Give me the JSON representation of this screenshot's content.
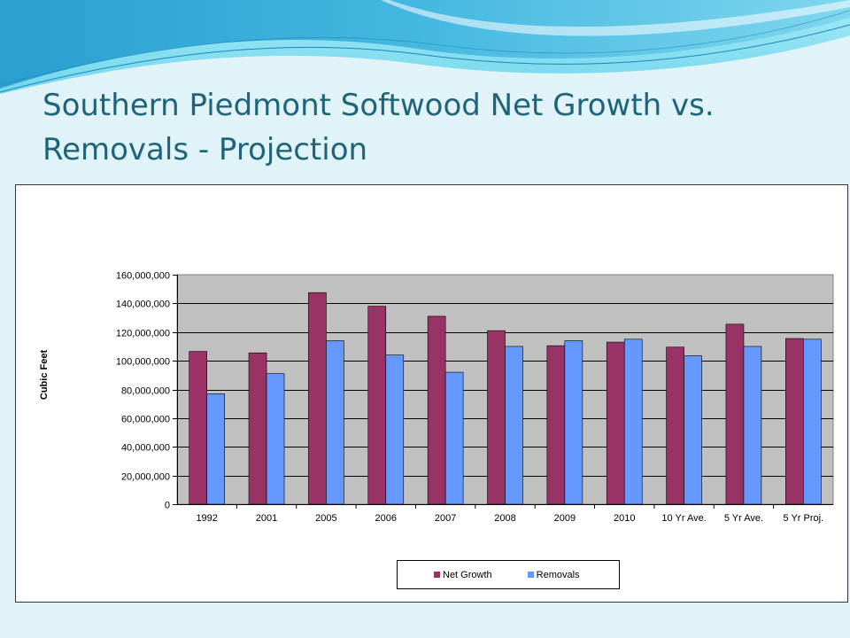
{
  "slide": {
    "title": "Southern Piedmont Softwood Net Growth vs. Removals - Projection"
  },
  "colors": {
    "background": "#dff3f8",
    "title": "#1f6478",
    "plot_area": "#c0c0c0",
    "net_growth": "#993366",
    "removals": "#6699ff"
  },
  "chart_data": {
    "type": "bar",
    "title": "",
    "xlabel": "",
    "ylabel": "Cubic Feet",
    "ylim": [
      0,
      160000000
    ],
    "yticks": [
      0,
      20000000,
      40000000,
      60000000,
      80000000,
      100000000,
      120000000,
      140000000,
      160000000
    ],
    "ytick_labels": [
      "0",
      "20,000,000",
      "40,000,000",
      "60,000,000",
      "80,000,000",
      "100,000,000",
      "120,000,000",
      "140,000,000",
      "160,000,000"
    ],
    "grid": "horizontal",
    "legend_position": "bottom",
    "categories": [
      "1992",
      "2001",
      "2005",
      "2006",
      "2007",
      "2008",
      "2009",
      "2010",
      "10 Yr Ave.",
      "5 Yr Ave.",
      "5 Yr Proj."
    ],
    "series": [
      {
        "name": "Net Growth",
        "color": "#993366",
        "values": [
          106500000,
          105500000,
          147500000,
          138000000,
          131000000,
          121000000,
          110500000,
          113000000,
          109500000,
          125500000,
          115500000
        ]
      },
      {
        "name": "Removals",
        "color": "#6699ff",
        "values": [
          77000000,
          91000000,
          114000000,
          104000000,
          92000000,
          110000000,
          114000000,
          115000000,
          103500000,
          110000000,
          115000000
        ]
      }
    ]
  }
}
